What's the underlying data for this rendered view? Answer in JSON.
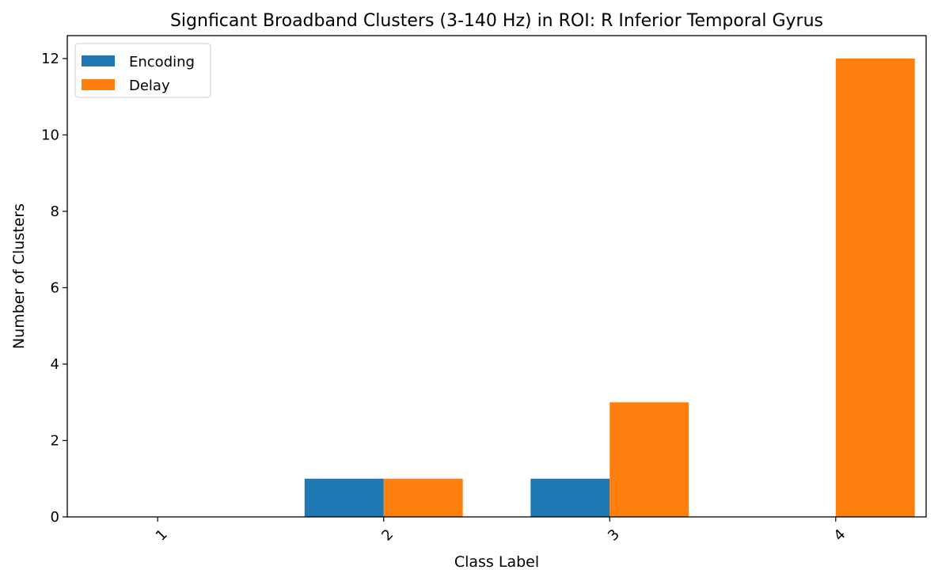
{
  "chart_data": {
    "type": "bar",
    "title": "Signficant Broadband Clusters (3-140 Hz) in ROI: R Inferior Temporal Gyrus",
    "xlabel": "Class Label",
    "ylabel": "Number of Clusters",
    "categories": [
      "1",
      "2",
      "3",
      "4"
    ],
    "series": [
      {
        "name": "Encoding",
        "color": "#1f77b4",
        "values": [
          0,
          1,
          1,
          0
        ]
      },
      {
        "name": "Delay",
        "color": "#ff7f0e",
        "values": [
          0,
          1,
          3,
          12
        ]
      }
    ],
    "ylim": [
      0,
      12.6
    ],
    "yticks": [
      0,
      2,
      4,
      6,
      8,
      10,
      12
    ],
    "grid": false,
    "legend_position": "upper left",
    "xtick_rotation_degrees": 45
  }
}
